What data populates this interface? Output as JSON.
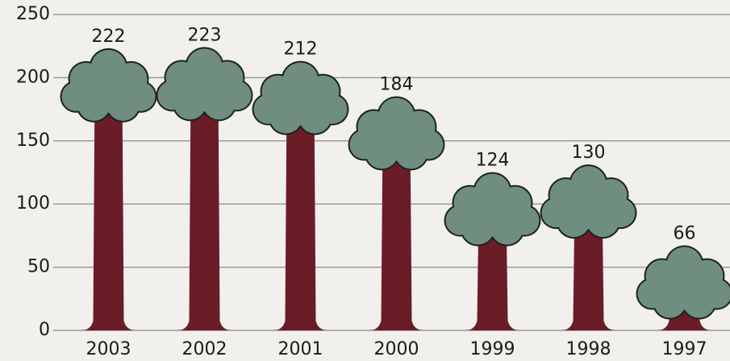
{
  "chart_data": {
    "type": "pictograph",
    "categories": [
      "2003",
      "2002",
      "2001",
      "2000",
      "1999",
      "1998",
      "1997"
    ],
    "values": [
      222,
      223,
      212,
      184,
      124,
      130,
      66
    ],
    "ylim": [
      0,
      250
    ],
    "yticks": [
      0,
      50,
      100,
      150,
      200,
      250
    ],
    "grid": true,
    "trunk_color": "#6a1c27",
    "canopy_color": "#6f8e7f"
  }
}
